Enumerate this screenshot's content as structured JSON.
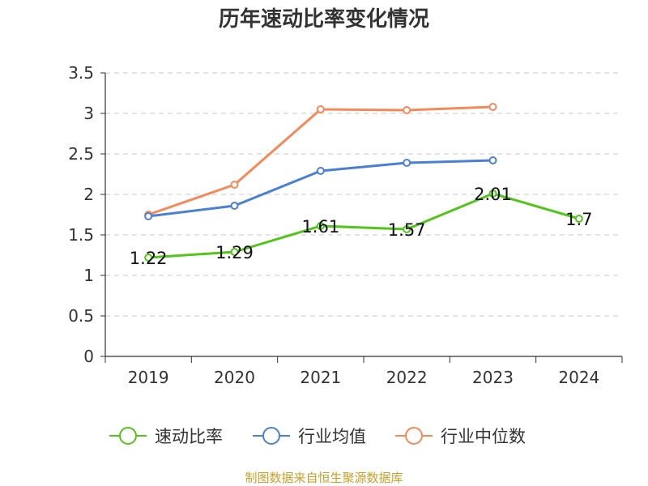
{
  "chart_data": {
    "type": "line",
    "title": "历年速动比率变化情况",
    "categories": [
      "2019",
      "2020",
      "2021",
      "2022",
      "2023",
      "2024"
    ],
    "ylim": [
      0,
      3.5
    ],
    "yticks": [
      "0",
      "0.5",
      "1",
      "1.5",
      "2",
      "2.5",
      "3",
      "3.5"
    ],
    "grid": true,
    "legend_position": "bottom",
    "series": [
      {
        "name": "速动比率",
        "color": "#52c41a",
        "values": [
          1.22,
          1.29,
          1.61,
          1.57,
          2.01,
          1.7
        ],
        "labels": [
          "1.22",
          "1.29",
          "1.61",
          "1.57",
          "2.01",
          "1.7"
        ]
      },
      {
        "name": "行业均值",
        "color": "#4a7fd6",
        "values": [
          1.73,
          1.86,
          2.29,
          2.39,
          2.42,
          null
        ]
      },
      {
        "name": "行业中位数",
        "color": "#f5895a",
        "values": [
          1.75,
          2.12,
          3.05,
          3.04,
          3.08,
          null
        ]
      }
    ],
    "source": "制图数据来自恒生聚源数据库"
  }
}
